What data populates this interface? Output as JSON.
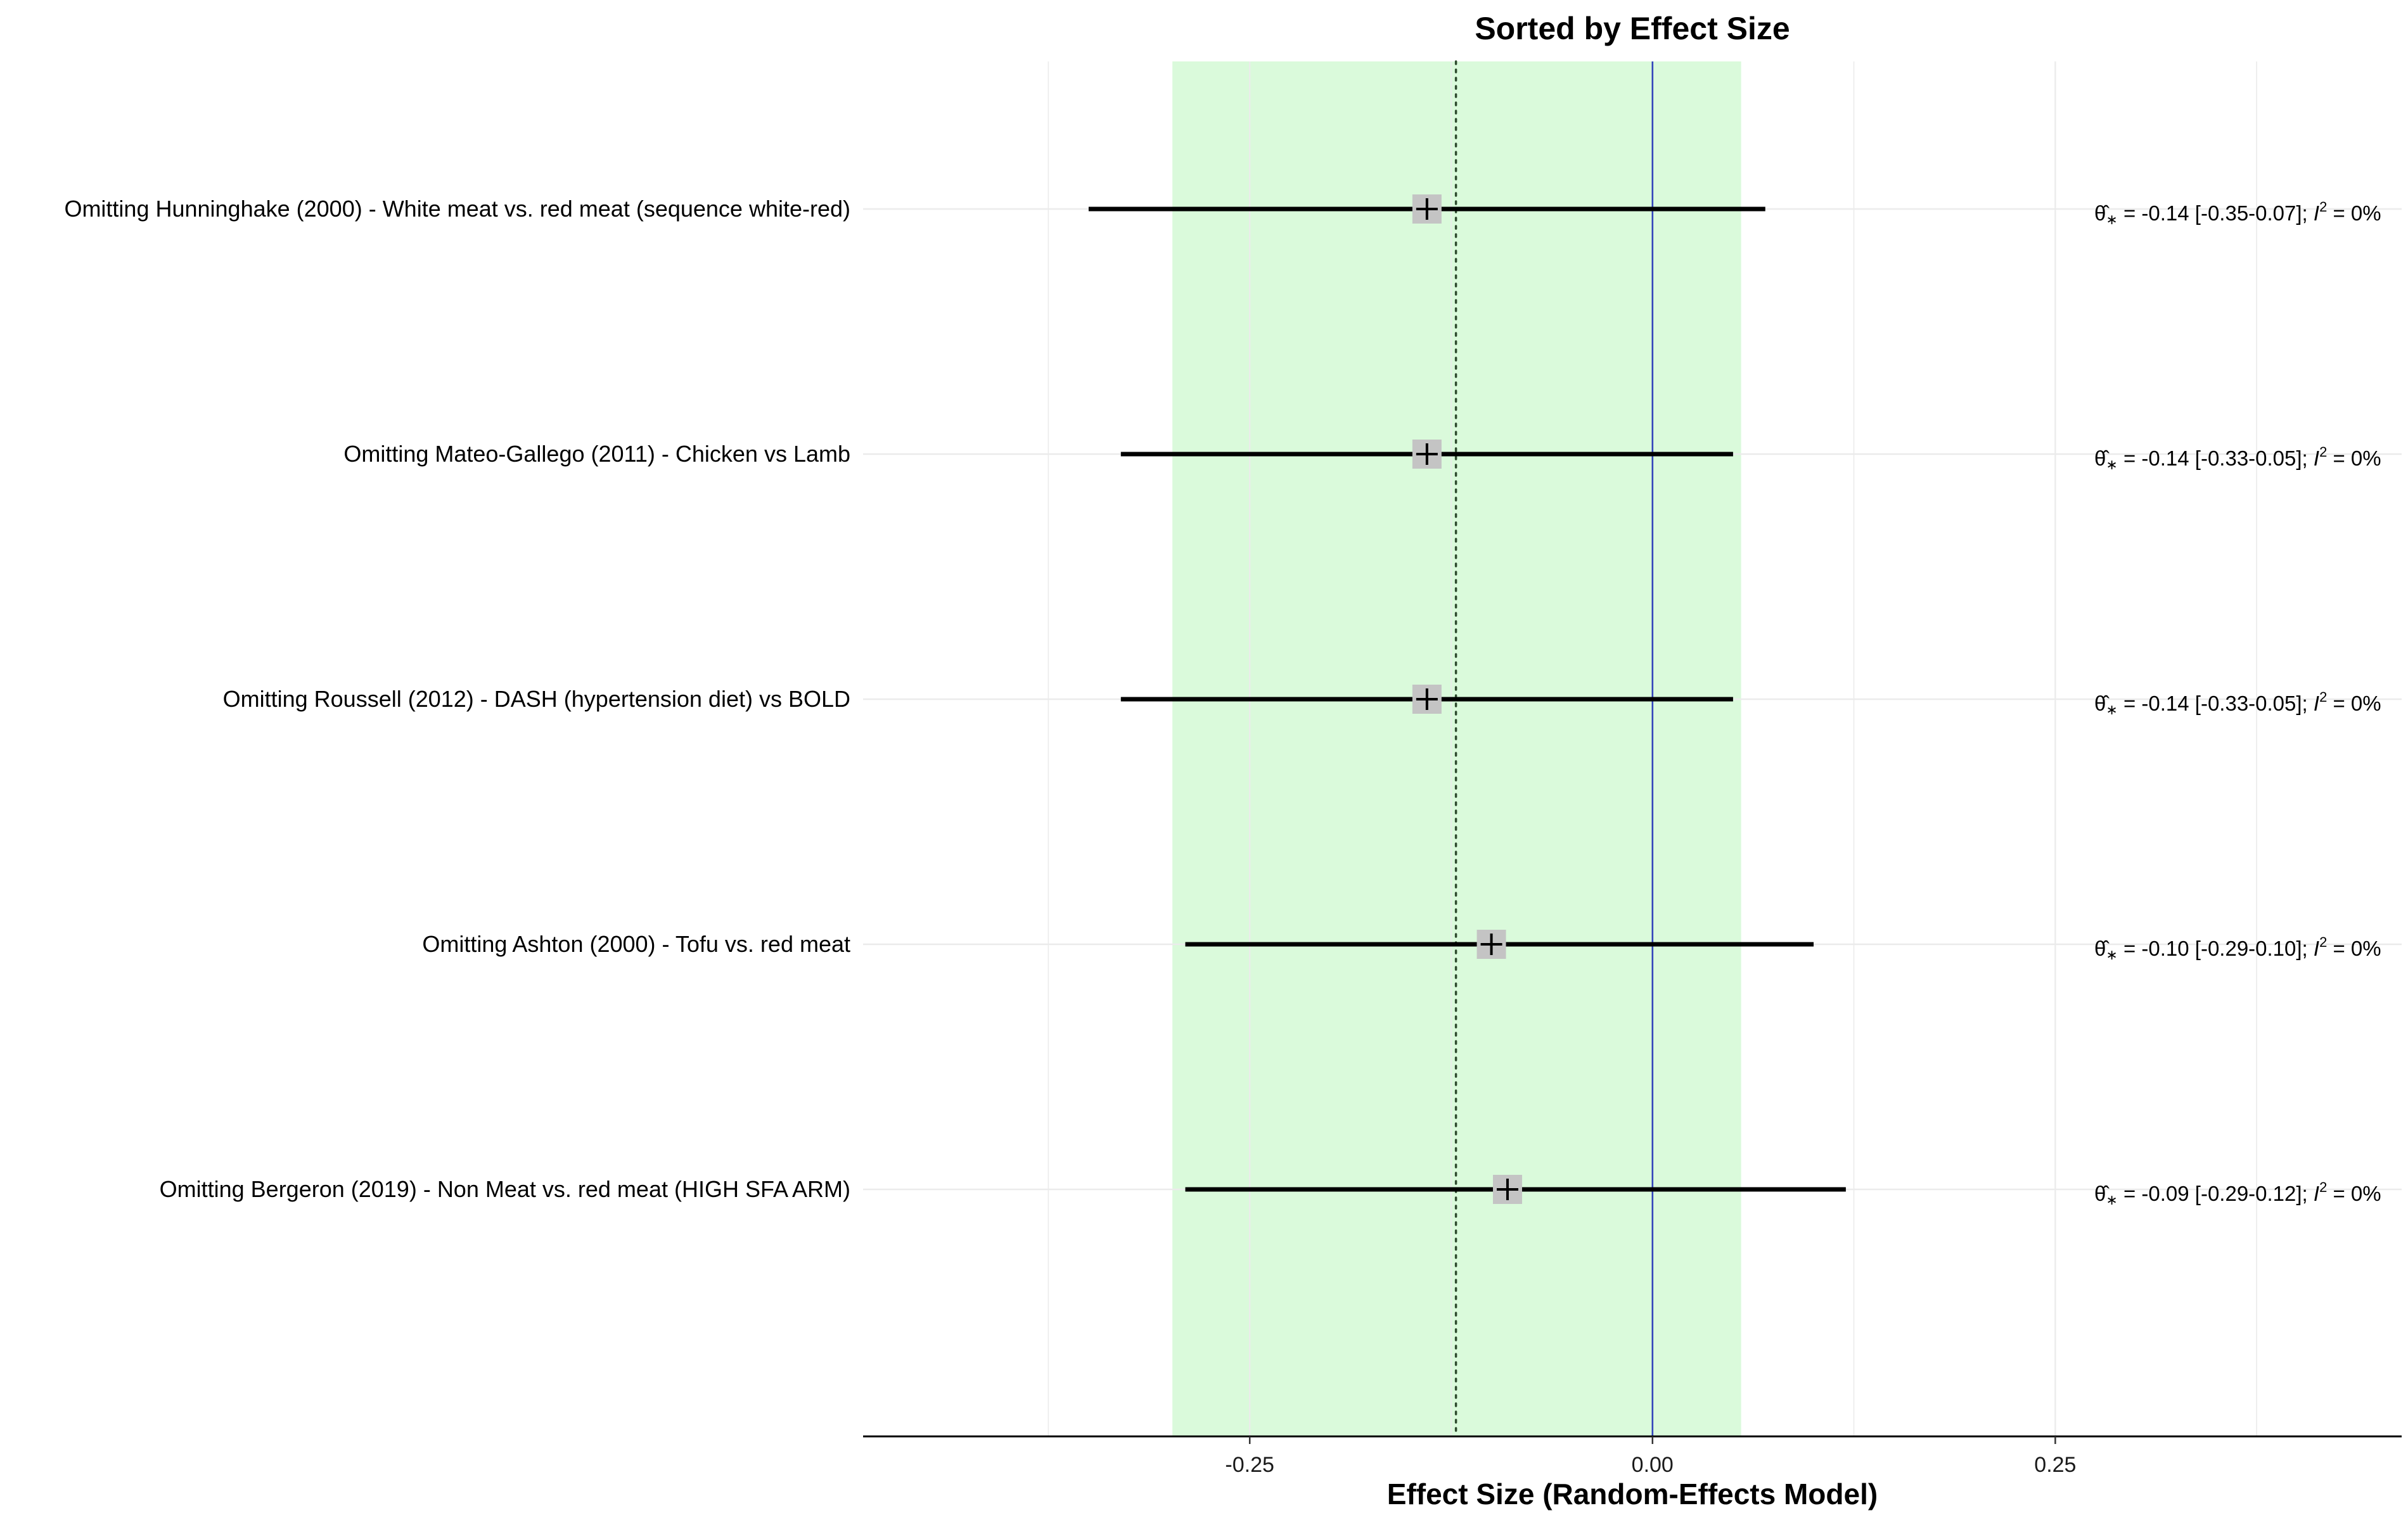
{
  "chart_data": {
    "type": "forest",
    "title": "Sorted by Effect Size",
    "xlabel": "Effect Size (Random-Effects Model)",
    "ylabel": "",
    "xlim": [
      -0.49,
      0.465
    ],
    "xticks": [
      -0.25,
      0.0,
      0.25
    ],
    "xtick_labels": [
      "-0.25",
      "0.00",
      "0.25"
    ],
    "grid": true,
    "pooled_effect": -0.122,
    "pooled_ci": [
      -0.298,
      0.055
    ],
    "reference_line": 0.0,
    "colors": {
      "ci_band": "#dafadb",
      "reference_line": "#3344bb",
      "pooled_line": "#2e4a2e",
      "marker": "#c4c4c4",
      "ci_line": "#000000",
      "grid": "#ebebeb"
    },
    "studies": [
      {
        "label": "Omitting Hunninghake (2000) - White meat vs. red meat (sequence white-red)",
        "estimate": -0.14,
        "lower": -0.35,
        "upper": 0.07,
        "annotation": {
          "value": "= -0.14 [-0.35-0.07];",
          "i2": "= 0%"
        }
      },
      {
        "label": "Omitting Mateo-Gallego (2011) - Chicken vs Lamb",
        "estimate": -0.14,
        "lower": -0.33,
        "upper": 0.05,
        "annotation": {
          "value": "= -0.14 [-0.33-0.05];",
          "i2": "= 0%"
        }
      },
      {
        "label": "Omitting Roussell (2012) - DASH (hypertension diet) vs BOLD",
        "estimate": -0.14,
        "lower": -0.33,
        "upper": 0.05,
        "annotation": {
          "value": "= -0.14 [-0.33-0.05];",
          "i2": "= 0%"
        }
      },
      {
        "label": "Omitting Ashton (2000) - Tofu vs. red meat",
        "estimate": -0.1,
        "lower": -0.29,
        "upper": 0.1,
        "annotation": {
          "value": "= -0.10 [-0.29-0.10];",
          "i2": "= 0%"
        }
      },
      {
        "label": "Omitting Bergeron (2019) - Non Meat vs. red meat   (HIGH SFA ARM)",
        "estimate": -0.09,
        "lower": -0.29,
        "upper": 0.12,
        "annotation": {
          "value": "= -0.09 [-0.29-0.12];",
          "i2": "= 0%"
        }
      }
    ]
  }
}
